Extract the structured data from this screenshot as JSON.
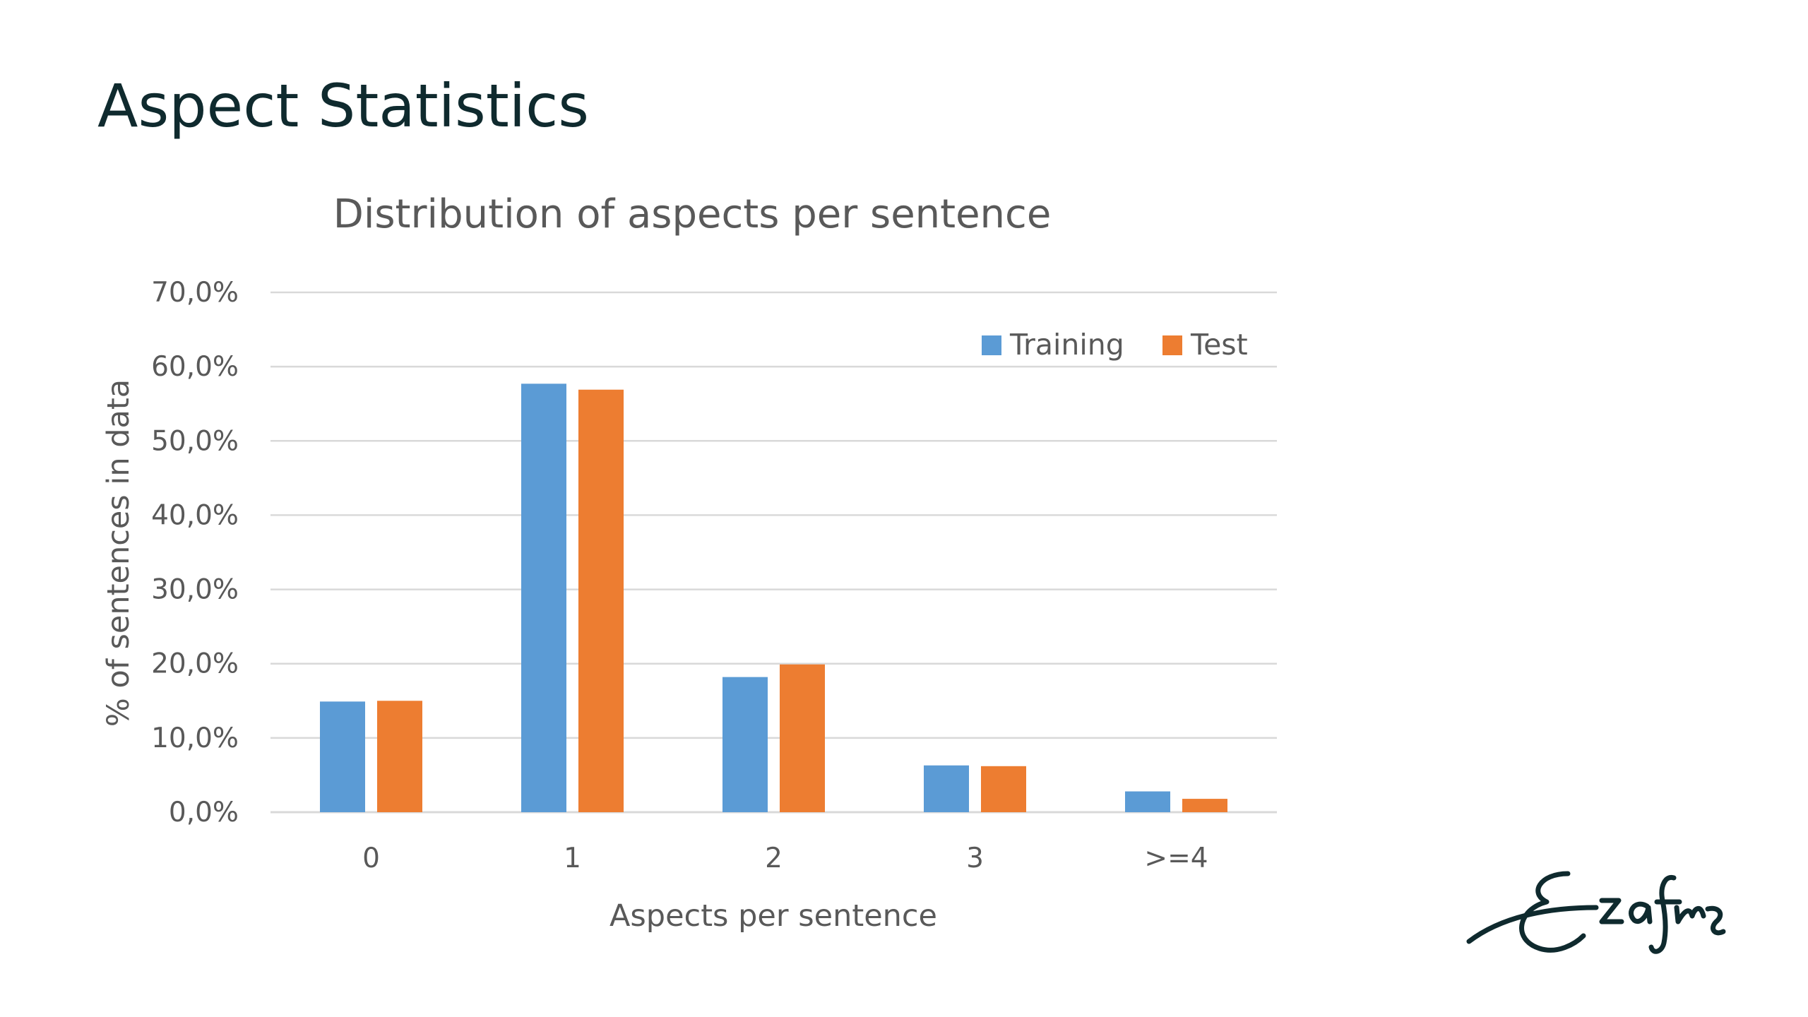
{
  "slide": {
    "title": "Aspect Statistics",
    "logo": {
      "text": "Erasmus",
      "color": "#0f2a2e",
      "icon": "erasmus-signature-logo"
    }
  },
  "chart_data": {
    "type": "bar",
    "title": "Distribution of aspects per sentence",
    "xlabel": "Aspects per sentence",
    "ylabel": "% of sentences in data",
    "categories": [
      "0",
      "1",
      "2",
      "3",
      ">=4"
    ],
    "series": [
      {
        "name": "Training",
        "color": "#5b9bd5",
        "values": [
          14.9,
          57.7,
          18.2,
          6.3,
          2.8
        ]
      },
      {
        "name": "Test",
        "color": "#ed7d31",
        "values": [
          15.0,
          56.9,
          19.9,
          6.2,
          1.8
        ]
      }
    ],
    "ylim": [
      0,
      70
    ],
    "yticks": [
      0,
      10,
      20,
      30,
      40,
      50,
      60,
      70
    ],
    "ytick_labels": [
      "0,0%",
      "10,0%",
      "20,0%",
      "30,0%",
      "40,0%",
      "50,0%",
      "60,0%",
      "70,0%"
    ],
    "grid": true,
    "gridline_color": "#d9d9d9",
    "legend_position": "top-right",
    "data_labels": false
  }
}
